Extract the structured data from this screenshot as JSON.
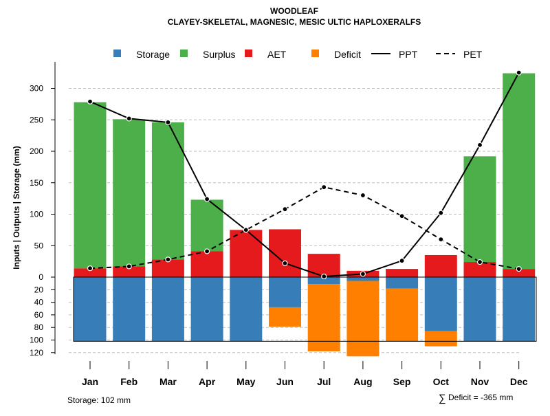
{
  "chart_data": {
    "type": "bar",
    "title": "WOODLEAF",
    "subtitle": "CLAYEY-SKELETAL, MAGNESIC, MESIC ULTIC HAPLOXERALFS",
    "ylabel": "Inputs | Outputs | Storage    (mm)",
    "categories": [
      "Jan",
      "Feb",
      "Mar",
      "Apr",
      "May",
      "Jun",
      "Jul",
      "Aug",
      "Sep",
      "Oct",
      "Nov",
      "Dec"
    ],
    "ylim_upper": [
      0,
      325
    ],
    "yticks_upper": [
      0,
      50,
      100,
      150,
      200,
      250,
      300
    ],
    "ylim_lower": [
      0,
      120
    ],
    "yticks_lower": [
      20,
      40,
      60,
      80,
      100,
      120
    ],
    "storage_capacity": 102,
    "upper_series": [
      {
        "name": "AET",
        "color": "#E41A1C",
        "values": [
          14,
          17,
          28,
          41,
          75,
          76,
          37,
          10,
          13,
          35,
          24,
          13
        ]
      },
      {
        "name": "Surplus",
        "color": "#4DAF4A",
        "values": [
          264,
          234,
          218,
          82,
          0,
          0,
          0,
          0,
          0,
          0,
          168,
          311
        ]
      }
    ],
    "lower_series": [
      {
        "name": "Storage",
        "color": "#377EB8",
        "values": [
          102,
          102,
          102,
          102,
          102,
          48,
          11,
          6,
          18,
          86,
          102,
          102
        ]
      },
      {
        "name": "Deficit",
        "color": "#FF7F00",
        "values": [
          0,
          0,
          0,
          0,
          0,
          31,
          107,
          120,
          84,
          24,
          0,
          0
        ]
      }
    ],
    "lines": [
      {
        "name": "PPT",
        "style": "solid",
        "values": [
          279,
          252,
          246,
          124,
          75,
          22,
          1,
          5,
          26,
          102,
          210,
          325
        ]
      },
      {
        "name": "PET",
        "style": "dashed",
        "values": [
          14,
          17,
          28,
          41,
          75,
          108,
          143,
          130,
          97,
          60,
          24,
          13
        ]
      }
    ],
    "legend": [
      "Storage",
      "Surplus",
      "AET",
      "Deficit",
      "PPT",
      "PET"
    ],
    "legend_position": "top",
    "footer_left": "Storage: 102 mm",
    "footer_right_symbol": "∑",
    "footer_right": "Deficit = -365 mm"
  }
}
